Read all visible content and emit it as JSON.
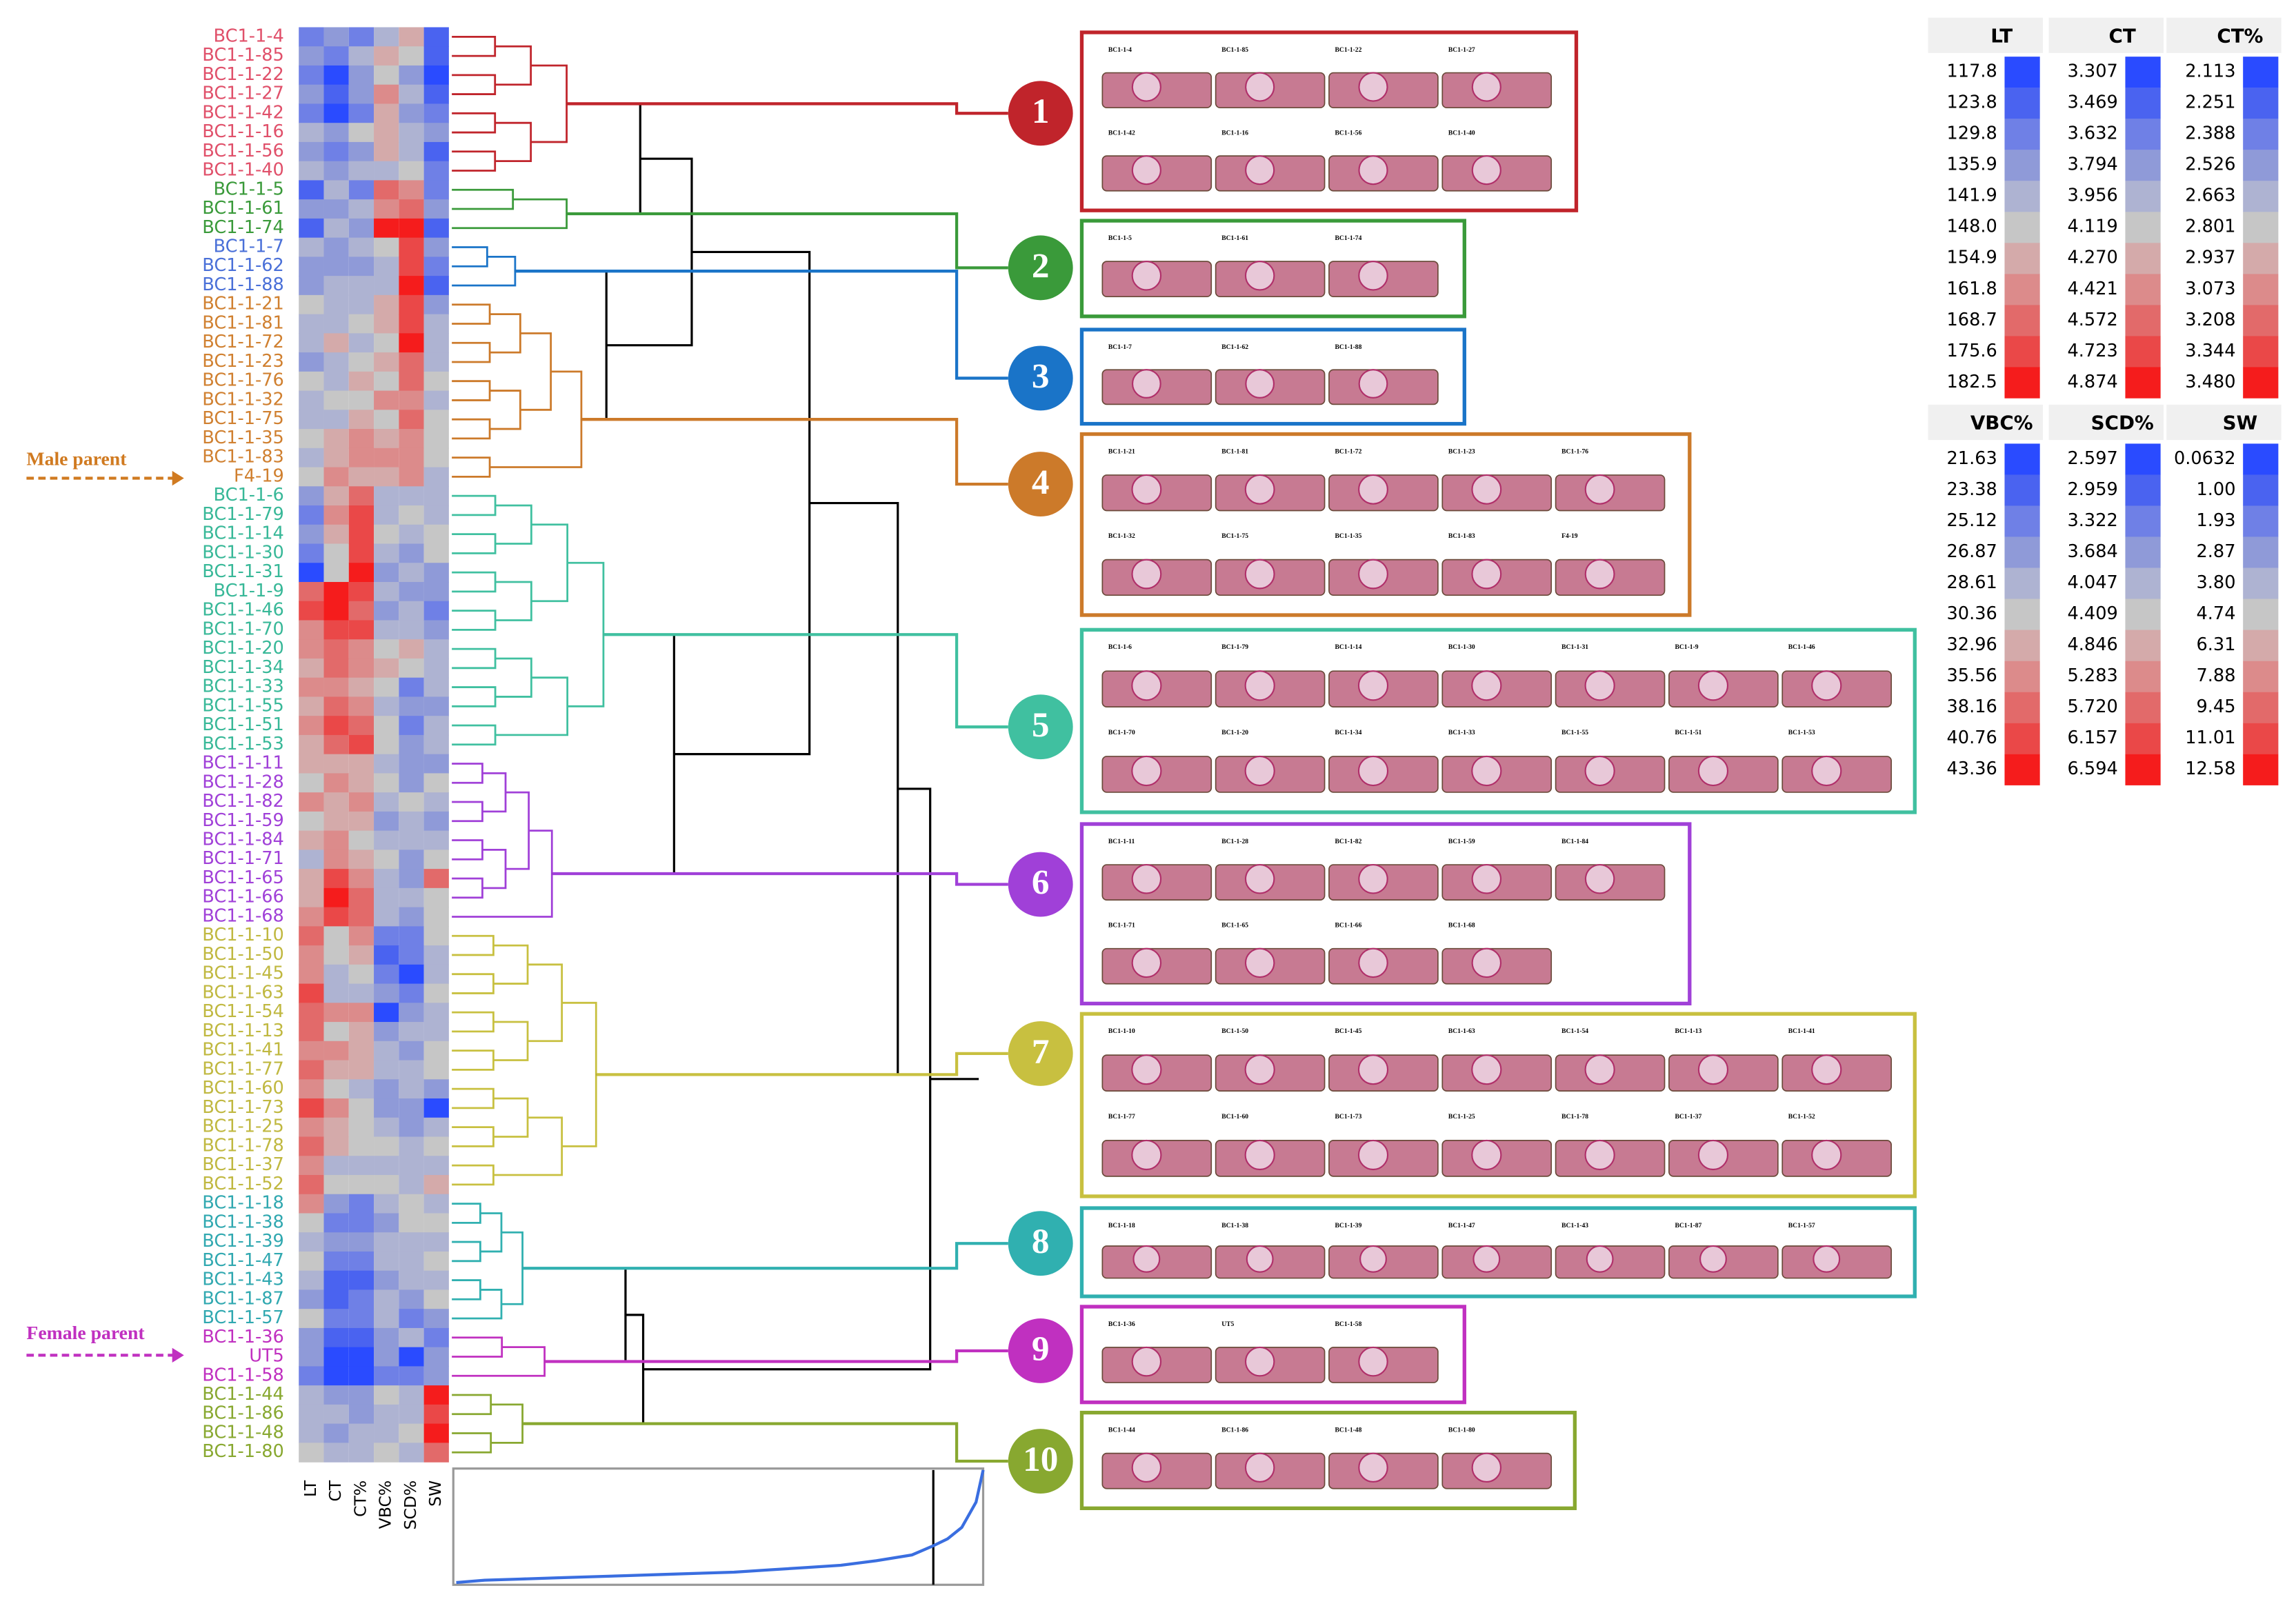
{
  "figure": {
    "scale_colors": [
      "#2a4bff",
      "#4a63f0",
      "#6f80e6",
      "#8f9ad8",
      "#aeb3d2",
      "#c6c6c6",
      "#d4aaaa",
      "#dc8b8b",
      "#e26a6a",
      "#ea4848",
      "#f51c1c"
    ],
    "columns": [
      "LT",
      "CT",
      "CT%",
      "VBC%",
      "SCD%",
      "SW"
    ],
    "clusters": [
      {
        "label": "1",
        "color": "#c0242b",
        "label_color": "#e0506a",
        "rows": [
          {
            "label": "BC1-1-4",
            "levels": [
              2,
              3,
              2,
              4,
              6,
              1
            ]
          },
          {
            "label": "BC1-1-85",
            "levels": [
              3,
              2,
              4,
              6,
              5,
              1
            ]
          },
          {
            "label": "BC1-1-22",
            "levels": [
              2,
              0,
              3,
              5,
              3,
              0
            ]
          },
          {
            "label": "BC1-1-27",
            "levels": [
              3,
              1,
              3,
              7,
              4,
              1
            ]
          },
          {
            "label": "BC1-1-42",
            "levels": [
              2,
              0,
              2,
              6,
              3,
              2
            ]
          },
          {
            "label": "BC1-1-16",
            "levels": [
              4,
              3,
              5,
              6,
              4,
              3
            ]
          },
          {
            "label": "BC1-1-56",
            "levels": [
              3,
              2,
              3,
              6,
              4,
              1
            ]
          },
          {
            "label": "BC1-1-40",
            "levels": [
              4,
              3,
              4,
              4,
              5,
              2
            ]
          }
        ]
      },
      {
        "label": "2",
        "color": "#3a9a3a",
        "label_color": "#3a9a3a",
        "rows": [
          {
            "label": "BC1-1-5",
            "levels": [
              1,
              4,
              2,
              8,
              7,
              2
            ]
          },
          {
            "label": "BC1-1-61",
            "levels": [
              3,
              3,
              4,
              7,
              8,
              3
            ]
          },
          {
            "label": "BC1-1-74",
            "levels": [
              1,
              4,
              3,
              10,
              10,
              1
            ]
          }
        ]
      },
      {
        "label": "3",
        "color": "#1a74c8",
        "label_color": "#4a70d8",
        "rows": [
          {
            "label": "BC1-1-7",
            "levels": [
              4,
              3,
              4,
              5,
              9,
              3
            ]
          },
          {
            "label": "BC1-1-62",
            "levels": [
              3,
              3,
              3,
              4,
              9,
              2
            ]
          },
          {
            "label": "BC1-1-88",
            "levels": [
              3,
              4,
              4,
              4,
              10,
              1
            ]
          }
        ]
      },
      {
        "label": "4",
        "color": "#cc7a2a",
        "label_color": "#d08030",
        "rows": [
          {
            "label": "BC1-1-21",
            "levels": [
              5,
              4,
              4,
              6,
              9,
              3
            ]
          },
          {
            "label": "BC1-1-81",
            "levels": [
              4,
              4,
              5,
              6,
              9,
              4
            ]
          },
          {
            "label": "BC1-1-72",
            "levels": [
              4,
              6,
              4,
              5,
              10,
              4
            ]
          },
          {
            "label": "BC1-1-23",
            "levels": [
              3,
              4,
              5,
              6,
              8,
              4
            ]
          },
          {
            "label": "BC1-1-76",
            "levels": [
              5,
              4,
              6,
              5,
              8,
              5
            ]
          },
          {
            "label": "BC1-1-32",
            "levels": [
              4,
              5,
              5,
              7,
              7,
              4
            ]
          },
          {
            "label": "BC1-1-75",
            "levels": [
              4,
              4,
              6,
              5,
              8,
              5
            ]
          },
          {
            "label": "BC1-1-35",
            "levels": [
              5,
              6,
              7,
              6,
              7,
              5
            ]
          },
          {
            "label": "BC1-1-83",
            "levels": [
              4,
              6,
              7,
              7,
              7,
              5
            ]
          },
          {
            "label": "F4-19",
            "levels": [
              5,
              7,
              6,
              6,
              7,
              4
            ]
          }
        ]
      },
      {
        "label": "5",
        "color": "#40c0a0",
        "label_color": "#38b898",
        "rows": [
          {
            "label": "BC1-1-6",
            "levels": [
              3,
              6,
              8,
              4,
              4,
              4
            ]
          },
          {
            "label": "BC1-1-79",
            "levels": [
              2,
              7,
              9,
              4,
              5,
              4
            ]
          },
          {
            "label": "BC1-1-14",
            "levels": [
              3,
              6,
              9,
              5,
              4,
              5
            ]
          },
          {
            "label": "BC1-1-30",
            "levels": [
              2,
              5,
              9,
              4,
              3,
              5
            ]
          },
          {
            "label": "BC1-1-31",
            "levels": [
              0,
              5,
              10,
              3,
              4,
              3
            ]
          },
          {
            "label": "BC1-1-9",
            "levels": [
              8,
              10,
              9,
              4,
              3,
              3
            ]
          },
          {
            "label": "BC1-1-46",
            "levels": [
              9,
              10,
              8,
              3,
              4,
              2
            ]
          },
          {
            "label": "BC1-1-70",
            "levels": [
              7,
              9,
              9,
              4,
              4,
              3
            ]
          },
          {
            "label": "BC1-1-20",
            "levels": [
              7,
              8,
              7,
              5,
              6,
              4
            ]
          },
          {
            "label": "BC1-1-34",
            "levels": [
              6,
              8,
              7,
              6,
              5,
              4
            ]
          },
          {
            "label": "BC1-1-33",
            "levels": [
              7,
              7,
              6,
              5,
              2,
              4
            ]
          },
          {
            "label": "BC1-1-55",
            "levels": [
              6,
              8,
              7,
              4,
              3,
              3
            ]
          },
          {
            "label": "BC1-1-51",
            "levels": [
              7,
              9,
              8,
              5,
              2,
              4
            ]
          },
          {
            "label": "BC1-1-53",
            "levels": [
              6,
              8,
              9,
              5,
              3,
              4
            ]
          }
        ]
      },
      {
        "label": "6",
        "color": "#a040d8",
        "label_color": "#a040d8",
        "rows": [
          {
            "label": "BC1-1-11",
            "levels": [
              6,
              6,
              6,
              4,
              3,
              3
            ]
          },
          {
            "label": "BC1-1-28",
            "levels": [
              5,
              7,
              6,
              5,
              3,
              5
            ]
          },
          {
            "label": "BC1-1-82",
            "levels": [
              7,
              6,
              7,
              4,
              5,
              4
            ]
          },
          {
            "label": "BC1-1-59",
            "levels": [
              5,
              6,
              6,
              3,
              4,
              3
            ]
          },
          {
            "label": "BC1-1-84",
            "levels": [
              6,
              7,
              5,
              4,
              4,
              4
            ]
          },
          {
            "label": "BC1-1-71",
            "levels": [
              4,
              7,
              6,
              5,
              3,
              5
            ]
          },
          {
            "label": "BC1-1-65",
            "levels": [
              6,
              9,
              7,
              4,
              3,
              8
            ]
          },
          {
            "label": "BC1-1-66",
            "levels": [
              6,
              10,
              8,
              4,
              4,
              5
            ]
          },
          {
            "label": "BC1-1-68",
            "levels": [
              7,
              9,
              8,
              4,
              3,
              5
            ]
          }
        ]
      },
      {
        "label": "7",
        "color": "#c8c040",
        "label_color": "#c0b840",
        "rows": [
          {
            "label": "BC1-1-10",
            "levels": [
              8,
              5,
              7,
              2,
              2,
              5
            ]
          },
          {
            "label": "BC1-1-50",
            "levels": [
              7,
              5,
              6,
              1,
              2,
              4
            ]
          },
          {
            "label": "BC1-1-45",
            "levels": [
              7,
              4,
              5,
              2,
              0,
              4
            ]
          },
          {
            "label": "BC1-1-63",
            "levels": [
              9,
              4,
              4,
              3,
              2,
              5
            ]
          },
          {
            "label": "BC1-1-54",
            "levels": [
              8,
              7,
              7,
              0,
              3,
              4
            ]
          },
          {
            "label": "BC1-1-13",
            "levels": [
              8,
              5,
              6,
              3,
              4,
              4
            ]
          },
          {
            "label": "BC1-1-41",
            "levels": [
              7,
              7,
              6,
              4,
              3,
              5
            ]
          },
          {
            "label": "BC1-1-77",
            "levels": [
              8,
              6,
              6,
              4,
              4,
              5
            ]
          },
          {
            "label": "BC1-1-60",
            "levels": [
              7,
              5,
              4,
              3,
              4,
              3
            ]
          },
          {
            "label": "BC1-1-73",
            "levels": [
              9,
              7,
              5,
              3,
              3,
              0
            ]
          },
          {
            "label": "BC1-1-25",
            "levels": [
              7,
              6,
              5,
              4,
              3,
              4
            ]
          },
          {
            "label": "BC1-1-78",
            "levels": [
              8,
              6,
              5,
              5,
              4,
              5
            ]
          },
          {
            "label": "BC1-1-37",
            "levels": [
              7,
              4,
              4,
              4,
              4,
              4
            ]
          },
          {
            "label": "BC1-1-52",
            "levels": [
              8,
              5,
              5,
              5,
              4,
              6
            ]
          }
        ]
      },
      {
        "label": "8",
        "color": "#30b0b0",
        "label_color": "#30a8b0",
        "rows": [
          {
            "label": "BC1-1-18",
            "levels": [
              7,
              3,
              2,
              4,
              5,
              4
            ]
          },
          {
            "label": "BC1-1-38",
            "levels": [
              5,
              2,
              2,
              3,
              5,
              5
            ]
          },
          {
            "label": "BC1-1-39",
            "levels": [
              4,
              3,
              3,
              4,
              4,
              4
            ]
          },
          {
            "label": "BC1-1-47",
            "levels": [
              5,
              2,
              2,
              4,
              4,
              5
            ]
          },
          {
            "label": "BC1-1-43",
            "levels": [
              4,
              1,
              1,
              3,
              4,
              4
            ]
          },
          {
            "label": "BC1-1-87",
            "levels": [
              3,
              1,
              2,
              4,
              3,
              5
            ]
          },
          {
            "label": "BC1-1-57",
            "levels": [
              5,
              2,
              2,
              4,
              2,
              3
            ]
          }
        ]
      },
      {
        "label": "9",
        "color": "#c030c0",
        "label_color": "#c030c0",
        "rows": [
          {
            "label": "BC1-1-36",
            "levels": [
              3,
              1,
              1,
              3,
              4,
              2
            ]
          },
          {
            "label": "UT5",
            "levels": [
              3,
              0,
              0,
              3,
              0,
              3
            ]
          },
          {
            "label": "BC1-1-58",
            "levels": [
              2,
              0,
              0,
              2,
              2,
              3
            ]
          }
        ]
      },
      {
        "label": "10",
        "color": "#88a830",
        "label_color": "#88a830",
        "rows": [
          {
            "label": "BC1-1-44",
            "levels": [
              4,
              3,
              3,
              5,
              4,
              10
            ]
          },
          {
            "label": "BC1-1-86",
            "levels": [
              4,
              4,
              3,
              4,
              4,
              9
            ]
          },
          {
            "label": "BC1-1-48",
            "levels": [
              4,
              3,
              4,
              4,
              5,
              10
            ]
          },
          {
            "label": "BC1-1-80",
            "levels": [
              5,
              4,
              4,
              5,
              4,
              8
            ]
          }
        ]
      }
    ],
    "annotations": [
      {
        "text": "Male parent",
        "color": "#d07a20"
      },
      {
        "text": "Female parent",
        "color": "#c030c0"
      }
    ],
    "legend": [
      {
        "title": "LT",
        "labels": [
          "117.8",
          "123.8",
          "129.8",
          "135.9",
          "141.9",
          "148.0",
          "154.9",
          "161.8",
          "168.7",
          "175.6",
          "182.5"
        ]
      },
      {
        "title": "CT",
        "labels": [
          "3.307",
          "3.469",
          "3.632",
          "3.794",
          "3.956",
          "4.119",
          "4.270",
          "4.421",
          "4.572",
          "4.723",
          "4.874"
        ]
      },
      {
        "title": "CT%",
        "labels": [
          "2.113",
          "2.251",
          "2.388",
          "2.526",
          "2.663",
          "2.801",
          "2.937",
          "3.073",
          "3.208",
          "3.344",
          "3.480"
        ]
      },
      {
        "title": "VBC%",
        "labels": [
          "21.63",
          "23.38",
          "25.12",
          "26.87",
          "28.61",
          "30.36",
          "32.96",
          "35.56",
          "38.16",
          "40.76",
          "43.36"
        ]
      },
      {
        "title": "SCD%",
        "labels": [
          "2.597",
          "2.959",
          "3.322",
          "3.684",
          "4.047",
          "4.409",
          "4.846",
          "5.283",
          "5.720",
          "6.157",
          "6.594"
        ]
      },
      {
        "title": "SW",
        "labels": [
          "0.0632",
          "1.00",
          "1.93",
          "2.87",
          "3.80",
          "4.74",
          "6.31",
          "7.88",
          "9.45",
          "11.01",
          "12.58"
        ]
      }
    ],
    "elbow": {
      "x": [
        1,
        5,
        10,
        15,
        20,
        25,
        30,
        35,
        40,
        45,
        50,
        55,
        60,
        65,
        68,
        70,
        72,
        74,
        75
      ],
      "values": [
        2,
        4,
        5,
        6,
        7,
        8,
        9,
        10,
        11,
        13,
        15,
        17,
        21,
        26,
        34,
        40,
        50,
        72,
        100
      ],
      "xlim": [
        1,
        75
      ],
      "ylim": [
        0,
        100
      ],
      "cut_x": 68,
      "color": "#3a6ee0"
    }
  }
}
